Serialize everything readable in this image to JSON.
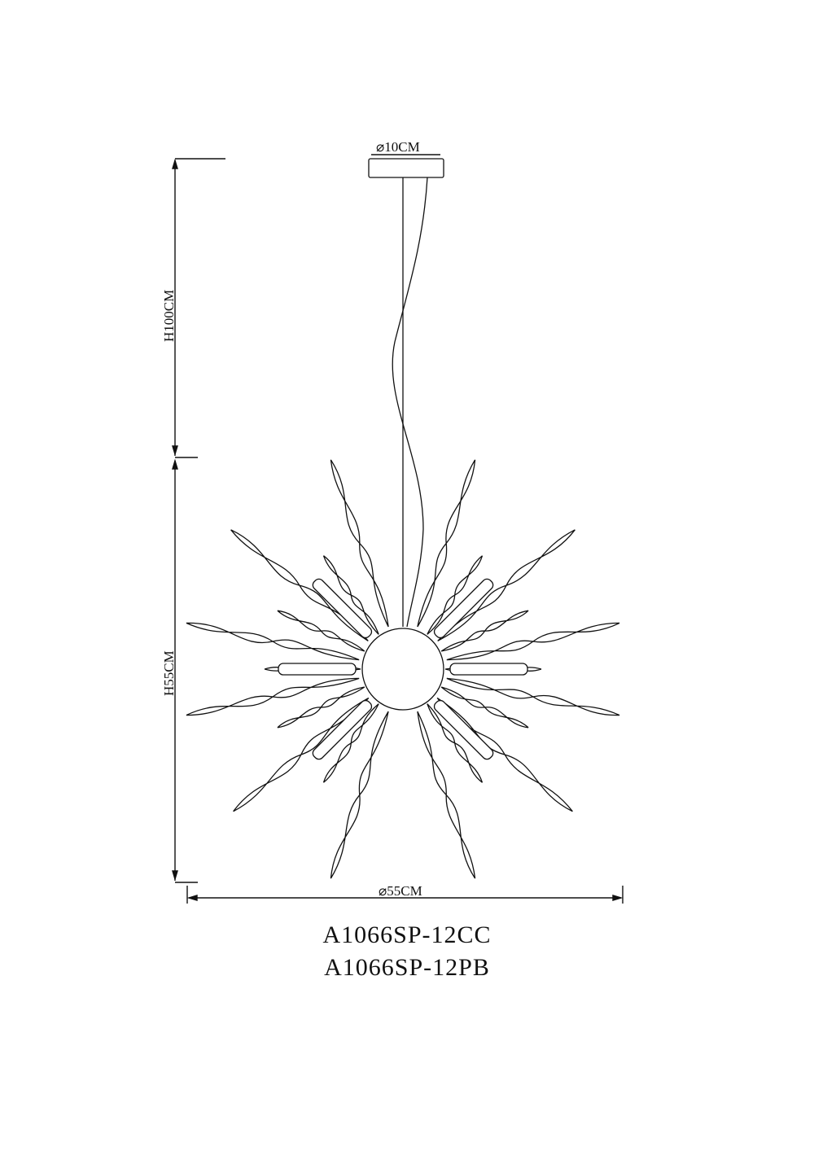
{
  "dimensions": {
    "canopy_diameter": "⌀10CM",
    "cable_height": "H100CM",
    "body_height": "H55CM",
    "body_diameter": "⌀55CM"
  },
  "models": [
    "A1066SP-12CC",
    "A1066SP-12PB"
  ],
  "line_color": "#111111"
}
